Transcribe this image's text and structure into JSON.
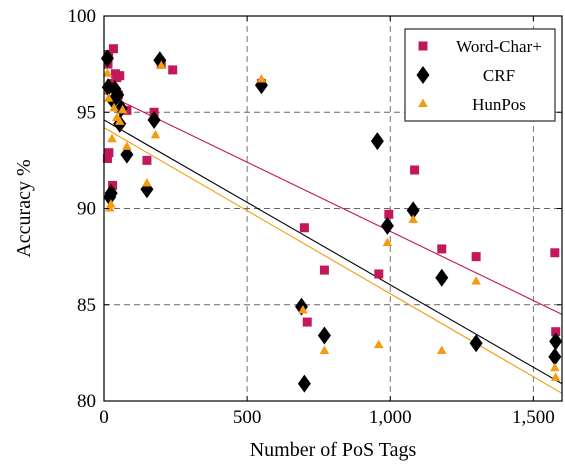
{
  "chart_data": {
    "type": "scatter",
    "xlabel": "Number of PoS Tags",
    "ylabel": "Accuracy %",
    "xlim": [
      0,
      1600
    ],
    "ylim": [
      80,
      100
    ],
    "x_ticks": [
      0,
      500,
      1000,
      1500
    ],
    "x_tick_labels": [
      "0",
      "500",
      "1,000",
      "1,500"
    ],
    "y_ticks": [
      80,
      85,
      90,
      95,
      100
    ],
    "y_tick_labels": [
      "80",
      "85",
      "90",
      "95",
      "100"
    ],
    "grid": true,
    "legend_position": "top-right",
    "series": [
      {
        "name": "Word-Char+",
        "marker": "square",
        "color": "#c2185b",
        "points": [
          [
            14,
            97.5
          ],
          [
            16,
            98.0
          ],
          [
            12,
            92.6
          ],
          [
            17,
            92.9
          ],
          [
            22,
            96.3
          ],
          [
            26,
            96.5
          ],
          [
            30,
            91.2
          ],
          [
            33,
            98.3
          ],
          [
            40,
            97.0
          ],
          [
            45,
            96.8
          ],
          [
            50,
            95.9
          ],
          [
            55,
            96.9
          ],
          [
            80,
            95.1
          ],
          [
            150,
            92.5
          ],
          [
            175,
            95.0
          ],
          [
            200,
            97.5
          ],
          [
            240,
            97.2
          ],
          [
            550,
            96.5
          ],
          [
            700,
            89.0
          ],
          [
            710,
            84.1
          ],
          [
            770,
            86.8
          ],
          [
            960,
            86.6
          ],
          [
            995,
            89.7
          ],
          [
            1085,
            92.0
          ],
          [
            1180,
            87.9
          ],
          [
            1300,
            87.5
          ],
          [
            1575,
            87.7
          ],
          [
            1578,
            83.6
          ]
        ],
        "trend": [
          [
            0,
            96.0
          ],
          [
            1600,
            84.5
          ]
        ]
      },
      {
        "name": "CRF",
        "marker": "diamond",
        "color": "#000000",
        "points": [
          [
            12,
            97.8
          ],
          [
            15,
            96.3
          ],
          [
            20,
            90.6
          ],
          [
            25,
            90.8
          ],
          [
            32,
            95.6
          ],
          [
            38,
            96.2
          ],
          [
            48,
            95.9
          ],
          [
            55,
            94.4
          ],
          [
            60,
            95.2
          ],
          [
            80,
            92.8
          ],
          [
            150,
            91.0
          ],
          [
            175,
            94.6
          ],
          [
            195,
            97.7
          ],
          [
            550,
            96.4
          ],
          [
            690,
            84.9
          ],
          [
            700,
            80.9
          ],
          [
            770,
            83.4
          ],
          [
            955,
            93.5
          ],
          [
            990,
            89.1
          ],
          [
            1080,
            89.9
          ],
          [
            1180,
            86.4
          ],
          [
            1300,
            83.0
          ],
          [
            1575,
            82.3
          ],
          [
            1578,
            83.1
          ]
        ],
        "trend": [
          [
            0,
            94.6
          ],
          [
            1600,
            80.9
          ]
        ]
      },
      {
        "name": "HunPos",
        "marker": "triangle",
        "color": "#f39c12",
        "points": [
          [
            12,
            97.0
          ],
          [
            16,
            95.7
          ],
          [
            20,
            90.0
          ],
          [
            24,
            90.2
          ],
          [
            28,
            93.6
          ],
          [
            35,
            95.2
          ],
          [
            45,
            94.7
          ],
          [
            55,
            94.5
          ],
          [
            65,
            95.1
          ],
          [
            80,
            93.2
          ],
          [
            150,
            91.3
          ],
          [
            180,
            93.8
          ],
          [
            200,
            97.4
          ],
          [
            550,
            96.7
          ],
          [
            695,
            84.7
          ],
          [
            770,
            82.6
          ],
          [
            960,
            82.9
          ],
          [
            990,
            88.2
          ],
          [
            1080,
            89.4
          ],
          [
            1180,
            82.6
          ],
          [
            1300,
            86.2
          ],
          [
            1575,
            81.7
          ],
          [
            1578,
            81.2
          ]
        ],
        "trend": [
          [
            0,
            94.2
          ],
          [
            1600,
            80.4
          ]
        ]
      }
    ]
  }
}
